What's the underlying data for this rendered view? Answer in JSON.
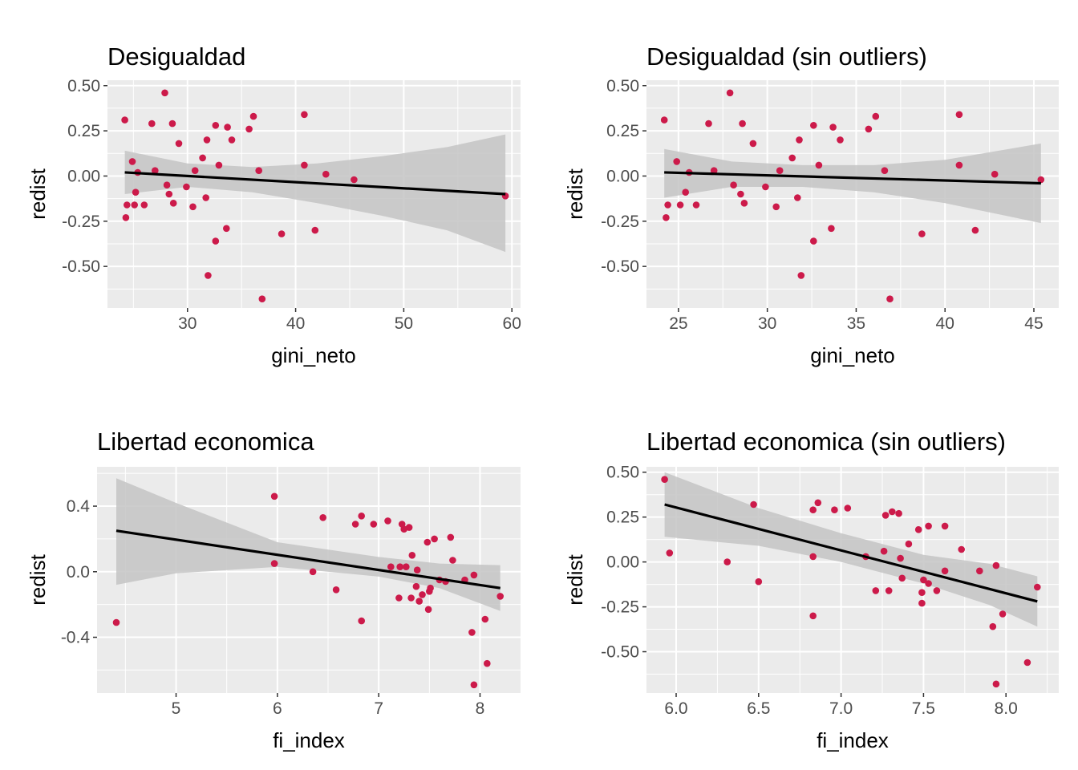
{
  "colors": {
    "panel_background": "#ebebeb",
    "grid": "#ffffff",
    "point": "#cc1a4a",
    "fit_line": "#000000",
    "ribbon": "#c4c4c4",
    "tick_text": "#4d4d4d",
    "tick_mark": "#333333"
  },
  "chart_data": [
    {
      "type": "scatter",
      "overlay": "linear-fit-with-confidence-band",
      "title": "Desigualdad",
      "xlabel": "gini_neto",
      "ylabel": "redist",
      "xlim": [
        22.6,
        60.8
      ],
      "ylim": [
        -0.73,
        0.53
      ],
      "xticks": [
        30,
        40,
        50,
        60
      ],
      "xtick_labels": [
        "30",
        "40",
        "50",
        "60"
      ],
      "yticks": [
        0.5,
        0.25,
        0,
        -0.25,
        -0.5
      ],
      "ytick_labels": [
        "0.50",
        "0.25",
        "0.00",
        "-0.25",
        "-0.50"
      ],
      "points": [
        [
          24.2,
          0.31
        ],
        [
          24.3,
          -0.23
        ],
        [
          24.4,
          -0.16
        ],
        [
          24.9,
          0.08
        ],
        [
          25.1,
          -0.16
        ],
        [
          25.2,
          -0.09
        ],
        [
          25.4,
          0.02
        ],
        [
          26.0,
          -0.16
        ],
        [
          26.7,
          0.29
        ],
        [
          27.0,
          0.03
        ],
        [
          27.9,
          0.46
        ],
        [
          28.1,
          -0.05
        ],
        [
          28.3,
          -0.1
        ],
        [
          28.6,
          0.29
        ],
        [
          28.7,
          -0.15
        ],
        [
          29.2,
          0.18
        ],
        [
          29.9,
          -0.06
        ],
        [
          30.5,
          -0.17
        ],
        [
          30.7,
          0.03
        ],
        [
          31.4,
          0.1
        ],
        [
          31.7,
          -0.12
        ],
        [
          31.8,
          0.2
        ],
        [
          31.9,
          -0.55
        ],
        [
          32.6,
          -0.36
        ],
        [
          32.6,
          0.28
        ],
        [
          32.9,
          0.06
        ],
        [
          33.7,
          0.27
        ],
        [
          33.6,
          -0.29
        ],
        [
          34.1,
          0.2
        ],
        [
          35.7,
          0.26
        ],
        [
          36.1,
          0.33
        ],
        [
          36.6,
          0.03
        ],
        [
          36.9,
          -0.68
        ],
        [
          38.7,
          -0.32
        ],
        [
          40.8,
          0.34
        ],
        [
          40.8,
          0.06
        ],
        [
          41.8,
          -0.3
        ],
        [
          42.8,
          0.01
        ],
        [
          45.4,
          -0.02
        ],
        [
          59.4,
          -0.11
        ]
      ],
      "fit": {
        "x": [
          24.2,
          59.4
        ],
        "y": [
          0.02,
          -0.1
        ]
      },
      "band": [
        {
          "x": 24.2,
          "lower": -0.1,
          "upper": 0.14
        },
        {
          "x": 30.0,
          "lower": -0.06,
          "upper": 0.07
        },
        {
          "x": 36.0,
          "lower": -0.09,
          "upper": 0.05
        },
        {
          "x": 42.0,
          "lower": -0.15,
          "upper": 0.07
        },
        {
          "x": 48.0,
          "lower": -0.22,
          "upper": 0.11
        },
        {
          "x": 54.0,
          "lower": -0.3,
          "upper": 0.16
        },
        {
          "x": 59.4,
          "lower": -0.42,
          "upper": 0.23
        }
      ]
    },
    {
      "type": "scatter",
      "overlay": "linear-fit-with-confidence-band",
      "title": "Desigualdad (sin outliers)",
      "xlabel": "gini_neto",
      "ylabel": "redist",
      "xlim": [
        23.2,
        46.4
      ],
      "ylim": [
        -0.73,
        0.53
      ],
      "xticks": [
        25,
        30,
        35,
        40,
        45
      ],
      "xtick_labels": [
        "25",
        "30",
        "35",
        "40",
        "45"
      ],
      "yticks": [
        0.5,
        0.25,
        0,
        -0.25,
        -0.5
      ],
      "ytick_labels": [
        "0.50",
        "0.25",
        "0.00",
        "-0.25",
        "-0.50"
      ],
      "points": [
        [
          24.2,
          0.31
        ],
        [
          24.3,
          -0.23
        ],
        [
          24.4,
          -0.16
        ],
        [
          24.9,
          0.08
        ],
        [
          25.1,
          -0.16
        ],
        [
          25.4,
          -0.09
        ],
        [
          25.6,
          0.02
        ],
        [
          26.0,
          -0.16
        ],
        [
          26.7,
          0.29
        ],
        [
          27.0,
          0.03
        ],
        [
          27.9,
          0.46
        ],
        [
          28.1,
          -0.05
        ],
        [
          28.5,
          -0.1
        ],
        [
          28.6,
          0.29
        ],
        [
          28.7,
          -0.15
        ],
        [
          29.2,
          0.18
        ],
        [
          29.9,
          -0.06
        ],
        [
          30.5,
          -0.17
        ],
        [
          30.7,
          0.03
        ],
        [
          31.4,
          0.1
        ],
        [
          31.7,
          -0.12
        ],
        [
          31.8,
          0.2
        ],
        [
          31.9,
          -0.55
        ],
        [
          32.6,
          -0.36
        ],
        [
          32.6,
          0.28
        ],
        [
          32.9,
          0.06
        ],
        [
          33.7,
          0.27
        ],
        [
          33.6,
          -0.29
        ],
        [
          34.1,
          0.2
        ],
        [
          35.7,
          0.26
        ],
        [
          36.1,
          0.33
        ],
        [
          36.6,
          0.03
        ],
        [
          36.9,
          -0.68
        ],
        [
          38.7,
          -0.32
        ],
        [
          40.8,
          0.34
        ],
        [
          40.8,
          0.06
        ],
        [
          41.7,
          -0.3
        ],
        [
          42.8,
          0.01
        ],
        [
          45.4,
          -0.02
        ]
      ],
      "fit": {
        "x": [
          24.2,
          45.4
        ],
        "y": [
          0.02,
          -0.04
        ]
      },
      "band": [
        {
          "x": 24.2,
          "lower": -0.12,
          "upper": 0.15
        },
        {
          "x": 28.0,
          "lower": -0.06,
          "upper": 0.08
        },
        {
          "x": 32.0,
          "lower": -0.06,
          "upper": 0.06
        },
        {
          "x": 36.0,
          "lower": -0.09,
          "upper": 0.06
        },
        {
          "x": 40.0,
          "lower": -0.15,
          "upper": 0.09
        },
        {
          "x": 45.4,
          "lower": -0.26,
          "upper": 0.18
        }
      ]
    },
    {
      "type": "scatter",
      "overlay": "linear-fit-with-confidence-band",
      "title": "Libertad economica",
      "xlabel": "fi_index",
      "ylabel": "redist",
      "xlim": [
        4.22,
        8.4
      ],
      "ylim": [
        -0.74,
        0.64
      ],
      "xticks": [
        5,
        6,
        7,
        8
      ],
      "xtick_labels": [
        "5",
        "6",
        "7",
        "8"
      ],
      "yticks": [
        0.4,
        0,
        -0.4
      ],
      "ytick_labels": [
        "0.4",
        "0.0",
        "-0.4"
      ],
      "points": [
        [
          4.41,
          -0.31
        ],
        [
          5.97,
          0.46
        ],
        [
          5.97,
          0.05
        ],
        [
          6.35,
          0.0
        ],
        [
          6.45,
          0.33
        ],
        [
          6.58,
          -0.11
        ],
        [
          6.77,
          0.29
        ],
        [
          6.83,
          0.34
        ],
        [
          6.83,
          -0.3
        ],
        [
          6.95,
          0.29
        ],
        [
          7.09,
          0.31
        ],
        [
          7.12,
          0.03
        ],
        [
          7.2,
          -0.16
        ],
        [
          7.21,
          0.03
        ],
        [
          7.23,
          0.29
        ],
        [
          7.25,
          0.26
        ],
        [
          7.27,
          0.03
        ],
        [
          7.3,
          0.27
        ],
        [
          7.32,
          -0.16
        ],
        [
          7.33,
          0.1
        ],
        [
          7.37,
          -0.09
        ],
        [
          7.38,
          0.01
        ],
        [
          7.4,
          -0.18
        ],
        [
          7.43,
          -0.14
        ],
        [
          7.48,
          0.18
        ],
        [
          7.49,
          -0.23
        ],
        [
          7.5,
          -0.12
        ],
        [
          7.51,
          -0.1
        ],
        [
          7.55,
          0.2
        ],
        [
          7.6,
          -0.05
        ],
        [
          7.66,
          -0.06
        ],
        [
          7.71,
          0.21
        ],
        [
          7.73,
          0.07
        ],
        [
          7.85,
          -0.05
        ],
        [
          7.92,
          -0.37
        ],
        [
          7.94,
          -0.02
        ],
        [
          7.94,
          -0.69
        ],
        [
          8.05,
          -0.29
        ],
        [
          8.07,
          -0.56
        ],
        [
          8.2,
          -0.15
        ]
      ],
      "fit": {
        "x": [
          4.41,
          8.2
        ],
        "y": [
          0.25,
          -0.1
        ]
      },
      "band": [
        {
          "x": 4.41,
          "lower": -0.08,
          "upper": 0.57
        },
        {
          "x": 5.0,
          "lower": -0.01,
          "upper": 0.42
        },
        {
          "x": 6.0,
          "lower": 0.03,
          "upper": 0.18
        },
        {
          "x": 7.0,
          "lower": -0.03,
          "upper": 0.09
        },
        {
          "x": 7.6,
          "lower": -0.1,
          "upper": 0.05
        },
        {
          "x": 8.2,
          "lower": -0.24,
          "upper": 0.04
        }
      ]
    },
    {
      "type": "scatter",
      "overlay": "linear-fit-with-confidence-band",
      "title": "Libertad economica (sin outliers)",
      "xlabel": "fi_index",
      "ylabel": "redist",
      "xlim": [
        5.82,
        8.32
      ],
      "ylim": [
        -0.73,
        0.53
      ],
      "xticks": [
        6.0,
        6.5,
        7.0,
        7.5,
        8.0
      ],
      "xtick_labels": [
        "6.0",
        "6.5",
        "7.0",
        "7.5",
        "8.0"
      ],
      "yticks": [
        0.5,
        0.25,
        0,
        -0.25,
        -0.5
      ],
      "ytick_labels": [
        "0.50",
        "0.25",
        "0.00",
        "-0.25",
        "-0.50"
      ],
      "points": [
        [
          5.93,
          0.46
        ],
        [
          5.96,
          0.05
        ],
        [
          6.31,
          0.0
        ],
        [
          6.47,
          0.32
        ],
        [
          6.5,
          -0.11
        ],
        [
          6.83,
          0.29
        ],
        [
          6.83,
          0.03
        ],
        [
          6.83,
          -0.3
        ],
        [
          6.86,
          0.33
        ],
        [
          6.96,
          0.29
        ],
        [
          7.04,
          0.3
        ],
        [
          7.15,
          0.03
        ],
        [
          7.21,
          -0.16
        ],
        [
          7.26,
          0.06
        ],
        [
          7.27,
          0.26
        ],
        [
          7.29,
          -0.16
        ],
        [
          7.31,
          0.28
        ],
        [
          7.35,
          0.27
        ],
        [
          7.36,
          0.02
        ],
        [
          7.37,
          -0.09
        ],
        [
          7.41,
          0.1
        ],
        [
          7.47,
          0.18
        ],
        [
          7.49,
          -0.17
        ],
        [
          7.49,
          -0.23
        ],
        [
          7.5,
          -0.1
        ],
        [
          7.53,
          0.2
        ],
        [
          7.53,
          -0.12
        ],
        [
          7.58,
          -0.16
        ],
        [
          7.63,
          0.2
        ],
        [
          7.63,
          -0.05
        ],
        [
          7.73,
          0.07
        ],
        [
          7.84,
          -0.05
        ],
        [
          7.92,
          -0.36
        ],
        [
          7.94,
          -0.02
        ],
        [
          7.94,
          -0.68
        ],
        [
          7.98,
          -0.29
        ],
        [
          8.13,
          -0.56
        ],
        [
          8.19,
          -0.14
        ]
      ],
      "fit": {
        "x": [
          5.93,
          8.19
        ],
        "y": [
          0.32,
          -0.22
        ]
      },
      "band": [
        {
          "x": 5.93,
          "lower": 0.14,
          "upper": 0.5
        },
        {
          "x": 6.5,
          "lower": 0.09,
          "upper": 0.3
        },
        {
          "x": 7.0,
          "lower": 0.0,
          "upper": 0.16
        },
        {
          "x": 7.5,
          "lower": -0.12,
          "upper": 0.04
        },
        {
          "x": 7.9,
          "lower": -0.24,
          "upper": -0.01
        },
        {
          "x": 8.19,
          "lower": -0.36,
          "upper": -0.08
        }
      ]
    }
  ]
}
